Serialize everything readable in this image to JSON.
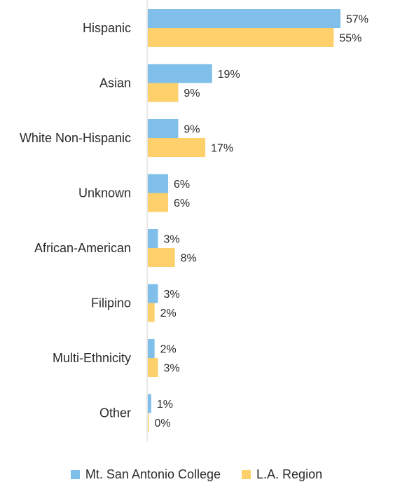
{
  "chart_data": {
    "type": "bar",
    "orientation": "horizontal",
    "categories": [
      "Hispanic",
      "Asian",
      "White Non-Hispanic",
      "Unknown",
      "African-American",
      "Filipino",
      "Multi-Ethnicity",
      "Other"
    ],
    "series": [
      {
        "name": "Mt. San Antonio College",
        "color": "#7fbfea",
        "values": [
          57,
          19,
          9,
          6,
          3,
          3,
          2,
          1
        ]
      },
      {
        "name": "L.A. Region",
        "color": "#fdd06b",
        "values": [
          55,
          9,
          17,
          6,
          8,
          2,
          3,
          0
        ]
      }
    ],
    "value_suffix": "%",
    "xlim": [
      0,
      57
    ],
    "grid": false,
    "legend_position": "bottom"
  }
}
